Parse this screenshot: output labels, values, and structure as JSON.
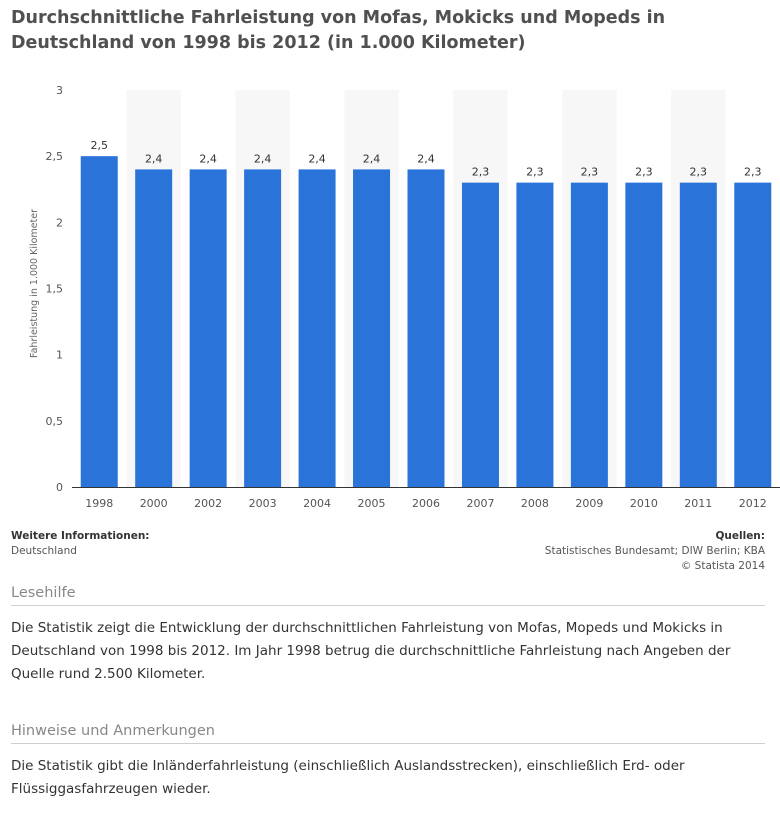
{
  "title": "Durchschnittliche Fahrleistung von Mofas, Mokicks und Mopeds in Deutschland von 1998 bis 2012 (in 1.000 Kilometer)",
  "colors": {
    "bar": "#2a73d9",
    "band": "#f7f7f7",
    "axis": "#333333"
  },
  "chart_data": {
    "type": "bar",
    "categories": [
      "1998",
      "2000",
      "2002",
      "2003",
      "2004",
      "2005",
      "2006",
      "2007",
      "2008",
      "2009",
      "2010",
      "2011",
      "2012"
    ],
    "values": [
      2.5,
      2.4,
      2.4,
      2.4,
      2.4,
      2.4,
      2.4,
      2.3,
      2.3,
      2.3,
      2.3,
      2.3,
      2.3
    ],
    "value_labels": [
      "2,5",
      "2,4",
      "2,4",
      "2,4",
      "2,4",
      "2,4",
      "2,4",
      "2,3",
      "2,3",
      "2,3",
      "2,3",
      "2,3",
      "2,3"
    ],
    "title": "",
    "xlabel": "",
    "ylabel": "Fahrleistung in 1.000 Kilometer",
    "ylim": [
      0,
      3
    ],
    "yticks": [
      0,
      0.5,
      1,
      1.5,
      2,
      2.5,
      3
    ],
    "ytick_labels": [
      "0",
      "0,5",
      "1",
      "1,5",
      "2",
      "2,5",
      "3"
    ],
    "grid": false,
    "legend": "none"
  },
  "info": {
    "left_heading": "Weitere Informationen:",
    "left_text": "Deutschland",
    "right_heading": "Quellen:",
    "right_sources": "Statistisches Bundesamt; DIW Berlin; KBA",
    "right_copyright": "© Statista 2014"
  },
  "lesehilfe": {
    "heading": "Lesehilfe",
    "text": "Die Statistik zeigt die Entwicklung der durchschnittlichen Fahrleistung von Mofas, Mopeds und Mokicks in Deutschland von 1998 bis 2012. Im Jahr 1998 betrug die durchschnittliche Fahrleistung nach Angeben der Quelle rund 2.500 Kilometer."
  },
  "hinweise": {
    "heading": "Hinweise und Anmerkungen",
    "text": "Die Statistik gibt die Inländerfahrleistung (einschließlich Auslandsstrecken), einschließlich Erd- oder Flüssiggasfahrzeugen wieder."
  }
}
